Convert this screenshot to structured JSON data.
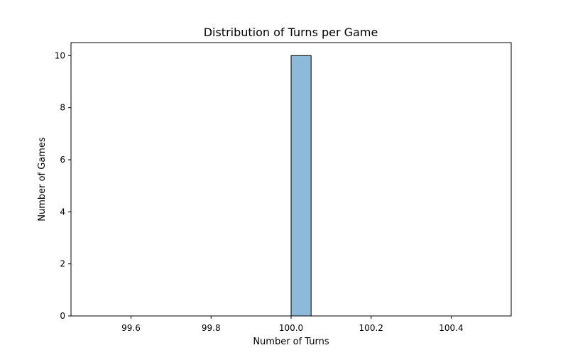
{
  "chart_data": {
    "type": "bar",
    "title": "Distribution of Turns per Game",
    "xlabel": "Number of Turns",
    "ylabel": "Number of Games",
    "xlim": [
      99.45,
      100.55
    ],
    "ylim": [
      0,
      10.5
    ],
    "x_ticks": [
      "99.6",
      "99.8",
      "100.0",
      "100.2",
      "100.4"
    ],
    "y_ticks": [
      "0",
      "2",
      "4",
      "6",
      "8",
      "10"
    ],
    "bin_edges": [
      99.5,
      99.55,
      99.6,
      99.65,
      99.7,
      99.75,
      99.8,
      99.85,
      99.9,
      99.95,
      100.0,
      100.05,
      100.1,
      100.15,
      100.2,
      100.25,
      100.3,
      100.35,
      100.4,
      100.45,
      100.5
    ],
    "counts": [
      0,
      0,
      0,
      0,
      0,
      0,
      0,
      0,
      0,
      0,
      10,
      0,
      0,
      0,
      0,
      0,
      0,
      0,
      0,
      0
    ],
    "grid": false,
    "bar_color": "#8dbad9",
    "edge_color": "#000000"
  }
}
